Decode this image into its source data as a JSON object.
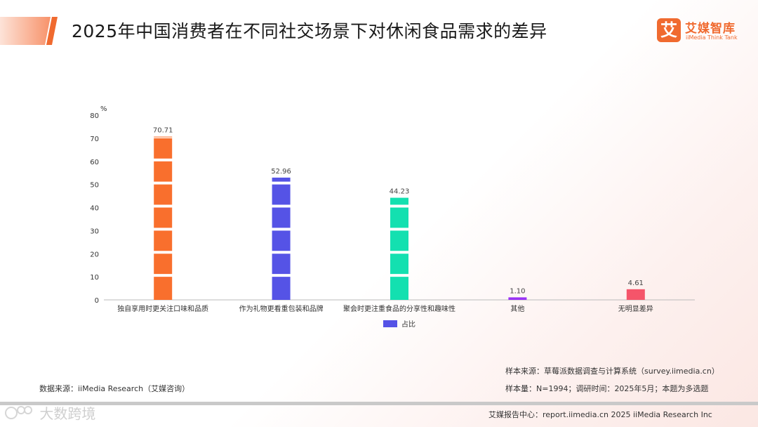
{
  "header": {
    "title": "2025年中国消费者在不同社交场景下对休闲食品需求的差异",
    "logo_mark": "艾",
    "logo_name": "艾媒智库",
    "logo_sub": "iiMedia Think Tank"
  },
  "chart_data": {
    "type": "bar",
    "ylabel": "%",
    "ylim": [
      0,
      80
    ],
    "yticks": [
      0,
      10,
      20,
      30,
      40,
      50,
      60,
      70,
      80
    ],
    "grid": false,
    "legend": "bottom-center",
    "categories": [
      "独自享用时更关注口味和品质",
      "作为礼物更看重包装和品牌",
      "聚会时更注重食品的分享性和趣味性",
      "其他",
      "无明显差异"
    ],
    "series": [
      {
        "name": "占比",
        "values": [
          70.71,
          52.96,
          44.23,
          1.1,
          4.61
        ],
        "value_labels": [
          "70.71",
          "52.96",
          "44.23",
          "1.10",
          "4.61"
        ],
        "colors": [
          "#f96f2d",
          "#5553e6",
          "#13e0b0",
          "#9933f5",
          "#f5556a"
        ]
      }
    ],
    "legend_color": "#5553e6"
  },
  "notes": {
    "source": "数据来源：iiMedia Research（艾媒咨询）",
    "sample_source": "样本来源：草莓派数据调查与计算系统（survey.iimedia.cn）",
    "sample_size": "样本量：N=1994；调研时间：2025年5月；本题为多选题"
  },
  "footer": {
    "text": "艾媒报告中心：report.iimedia.cn  2025 iiMedia Research Inc",
    "watermark": "大数跨境"
  },
  "colors": {
    "accent": "#f06a2f",
    "axis": "#bbbbbb"
  }
}
